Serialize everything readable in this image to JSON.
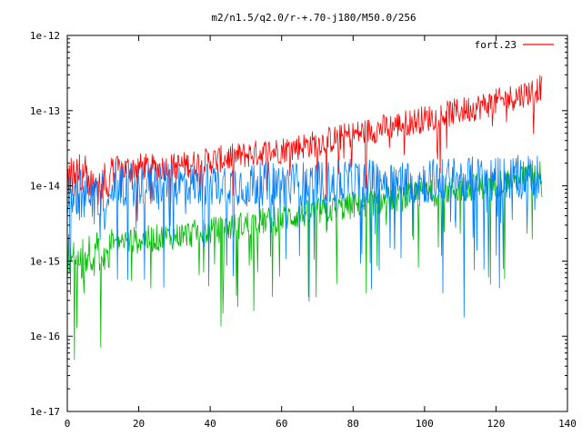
{
  "colors": {
    "background": "#ffffff",
    "axis": "#000000",
    "series_red": "#ff0000",
    "series_green": "#00bb00",
    "series_blue": "#0080ff"
  },
  "chart_data": {
    "type": "line",
    "title": "m2/n1.5/q2.0/r-+.70-j180/M50.0/256",
    "xlabel": "",
    "ylabel": "",
    "xlim": [
      0,
      140
    ],
    "ylim": [
      1e-17,
      1e-12
    ],
    "yscale": "log",
    "grid": false,
    "legend_position": "top-right",
    "x_ticks": [
      0,
      20,
      40,
      60,
      80,
      100,
      120,
      140
    ],
    "x_tick_labels": [
      "0",
      "20",
      "40",
      "60",
      "80",
      "100",
      "120",
      "140"
    ],
    "y_ticks": [
      1e-17,
      1e-16,
      1e-15,
      1e-14,
      1e-13,
      1e-12
    ],
    "y_tick_labels": [
      "1e-17",
      "1e-16",
      "1e-15",
      "1e-14",
      "1e-13",
      "1e-12"
    ],
    "series": [
      {
        "name": "fort.23",
        "color": "#ff0000",
        "description": "noisy trace rising from ~2e-14 to ~2.5e-13",
        "x": [
          0,
          5,
          10,
          15,
          20,
          25,
          30,
          40,
          50,
          60,
          70,
          80,
          90,
          100,
          110,
          120,
          130,
          133
        ],
        "y": [
          2.2e-14,
          2.1e-14,
          1.9e-14,
          1.9e-14,
          2.1e-14,
          2e-14,
          2.1e-14,
          2.5e-14,
          3e-14,
          3.5e-14,
          4.3e-14,
          5.6e-14,
          7.1e-14,
          9e-14,
          1.15e-13,
          1.5e-13,
          2.1e-13,
          2.4e-13
        ]
      },
      {
        "color": "#00bb00",
        "description": "noisy trace rising from ~2e-15 to ~1.7e-14 with deep downward spikes",
        "x": [
          0,
          10,
          20,
          30,
          40,
          50,
          60,
          70,
          80,
          90,
          100,
          110,
          120,
          130,
          133
        ],
        "y": [
          2e-15,
          2.1e-15,
          2.2e-15,
          2.5e-15,
          2.9e-15,
          3.6e-15,
          4.3e-15,
          5.2e-15,
          6.3e-15,
          7.6e-15,
          9e-15,
          1.05e-14,
          1.25e-14,
          1.6e-14,
          1.7e-14
        ]
      },
      {
        "color": "#0080ff",
        "description": "very noisy trace around ~1.2e-14 with deep downward spikes to ~1e-16",
        "x": [
          0,
          10,
          20,
          30,
          40,
          50,
          60,
          70,
          80,
          90,
          100,
          110,
          120,
          130,
          133
        ],
        "y": [
          1.3e-14,
          1.2e-14,
          1.2e-14,
          1.2e-14,
          1.2e-14,
          1.2e-14,
          1.2e-14,
          1.2e-14,
          1.3e-14,
          1.3e-14,
          1.3e-14,
          1.4e-14,
          1.4e-14,
          1.5e-14,
          1.5e-14
        ]
      }
    ]
  }
}
